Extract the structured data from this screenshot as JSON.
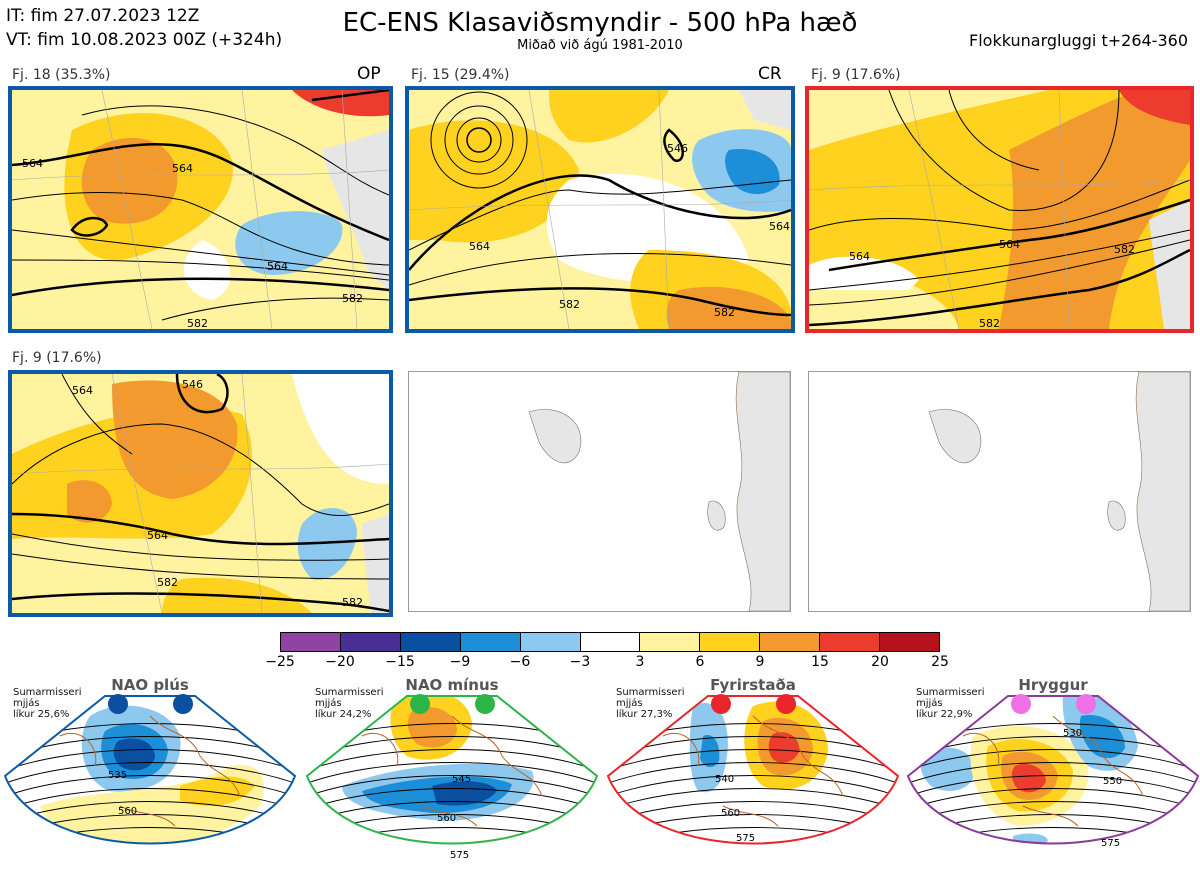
{
  "header": {
    "issue_time": "IT: fim 27.07.2023 12Z",
    "valid_time": "VT: fim 10.08.2023 00Z  (+324h)",
    "title": "EC-ENS Klasaviðsmyndir - 500 hPa hæð",
    "subtitle": "Miðað við ágú 1981-2010",
    "window": "Flokkunargluggi t+264-360"
  },
  "panels": [
    {
      "label": "Fj. 18 (35.3%)",
      "tag": "OP",
      "contours": [
        "564",
        "564",
        "564",
        "582",
        "582"
      ]
    },
    {
      "label": "Fj. 15 (29.4%)",
      "tag": "CR",
      "contours": [
        "546",
        "564",
        "582",
        "582",
        "564"
      ]
    },
    {
      "label": "Fj. 9 (17.6%)",
      "tag": "",
      "contours": [
        "564",
        "564",
        "582",
        "582"
      ]
    },
    {
      "label": "Fj. 9 (17.6%)",
      "tag": "",
      "contours": [
        "564",
        "564",
        "582",
        "582",
        "546"
      ]
    }
  ],
  "colorbar": {
    "ticks": [
      "−25",
      "−20",
      "−15",
      "−9",
      "−6",
      "−3",
      "3",
      "6",
      "9",
      "15",
      "20",
      "25"
    ],
    "colors": [
      "#8e44a0",
      "#4a2f95",
      "#0a4fa0",
      "#1d8fd8",
      "#8dc8ef",
      "#ffffff",
      "#fff3a0",
      "#ffd21f",
      "#f39a2e",
      "#ec3c2e",
      "#b5121b"
    ]
  },
  "regimes": [
    {
      "title": "NAO plús",
      "note": [
        "Sumarmisseri",
        "mjjás",
        "líkur 25,6%"
      ],
      "dot_color": "#0b4fa0",
      "border": "#0b5aa7",
      "contours": [
        "535",
        "560"
      ]
    },
    {
      "title": "NAO mínus",
      "note": [
        "Sumarmisseri",
        "mjjás",
        "líkur 24,2%"
      ],
      "dot_color": "#2db54a",
      "border": "#2db54a",
      "contours": [
        "545",
        "560",
        "575"
      ]
    },
    {
      "title": "Fyrirstaða",
      "note": [
        "Sumarmisseri",
        "mjjás",
        "líkur 27,3%"
      ],
      "dot_color": "#e8262b",
      "border": "#e8262b",
      "contours": [
        "540",
        "560",
        "575"
      ]
    },
    {
      "title": "Hryggur",
      "note": [
        "Sumarmisseri",
        "mjjás",
        "líkur 22,9%"
      ],
      "dot_color": "#ee6fe6",
      "border": "#8a3b9a",
      "contours": [
        "530",
        "550",
        "575"
      ]
    }
  ]
}
